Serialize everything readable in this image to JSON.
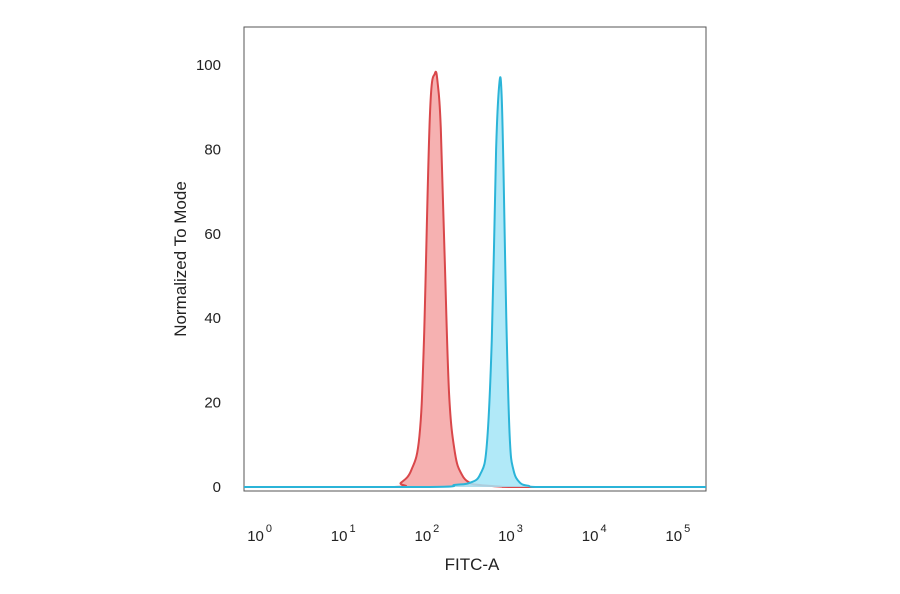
{
  "chart_data": {
    "type": "area",
    "title": "",
    "xlabel": "FITC-A",
    "ylabel": "Normalized To Mode",
    "x_scale": "log",
    "xlim": [
      0.6,
      200000
    ],
    "ylim": [
      0,
      100
    ],
    "x_ticks": [
      {
        "value": 1,
        "base": "10",
        "exp": "0"
      },
      {
        "value": 10,
        "base": "10",
        "exp": "1"
      },
      {
        "value": 100,
        "base": "10",
        "exp": "2"
      },
      {
        "value": 1000,
        "base": "10",
        "exp": "3"
      },
      {
        "value": 10000,
        "base": "10",
        "exp": "4"
      },
      {
        "value": 100000,
        "base": "10",
        "exp": "5"
      }
    ],
    "y_ticks": [
      "0",
      "20",
      "40",
      "60",
      "80",
      "100"
    ],
    "grid": false,
    "legend": "none",
    "series": [
      {
        "color_line": "#d9474a",
        "color_fill": "#f4a3a3",
        "x": [
          0.6,
          35,
          45,
          60,
          75,
          85,
          100,
          115,
          125,
          135,
          150,
          170,
          200,
          240,
          300,
          380,
          500,
          700,
          1000,
          10000,
          200000
        ],
        "y": [
          0,
          0,
          1,
          4,
          12,
          35,
          88,
          98,
          95,
          85,
          55,
          22,
          8,
          3,
          1,
          0.5,
          0.3,
          0.1,
          0,
          0,
          0
        ]
      },
      {
        "color_line": "#2bb4d8",
        "color_fill": "#a3e5f7",
        "x": [
          0.6,
          100,
          200,
          300,
          400,
          480,
          550,
          620,
          680,
          720,
          760,
          820,
          900,
          1000,
          1200,
          1500,
          2000,
          10000,
          200000
        ],
        "y": [
          0,
          0,
          0.5,
          1,
          3,
          10,
          35,
          80,
          96,
          93,
          75,
          40,
          12,
          4,
          1,
          0.3,
          0,
          0,
          0
        ]
      }
    ]
  }
}
